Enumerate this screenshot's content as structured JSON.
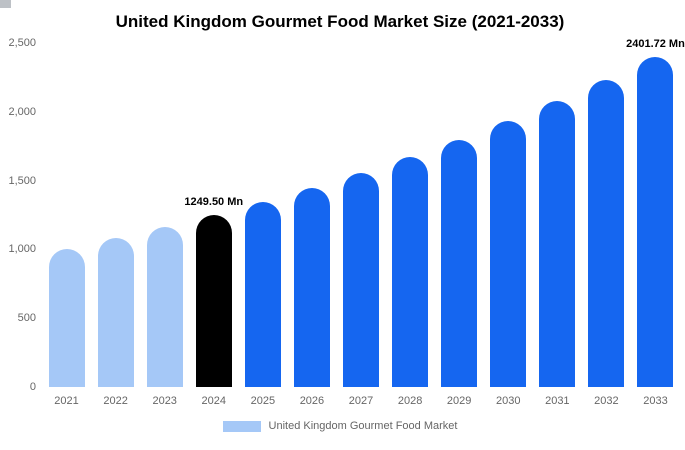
{
  "title": "United Kingdom Gourmet Food Market Size (2021-2033)",
  "legend": {
    "label": "United Kingdom Gourmet Food Market",
    "swatch_color": "#a5c8f7"
  },
  "colors": {
    "light_blue": "#a5c8f7",
    "bright_blue": "#1566f0",
    "black": "#000000",
    "axis_text": "#666666"
  },
  "chart_data": {
    "type": "bar",
    "title": "United Kingdom Gourmet Food Market Size (2021-2033)",
    "categories": [
      "2021",
      "2022",
      "2023",
      "2024",
      "2025",
      "2026",
      "2027",
      "2028",
      "2029",
      "2030",
      "2031",
      "2032",
      "2033"
    ],
    "values": [
      1005.0,
      1081.0,
      1162.2,
      1249.5,
      1343.6,
      1444.8,
      1553.6,
      1670.6,
      1796.4,
      1931.7,
      2077.1,
      2233.5,
      2401.72
    ],
    "bar_colors": [
      "#a5c8f7",
      "#a5c8f7",
      "#a5c8f7",
      "#000000",
      "#1566f0",
      "#1566f0",
      "#1566f0",
      "#1566f0",
      "#1566f0",
      "#1566f0",
      "#1566f0",
      "#1566f0",
      "#1566f0"
    ],
    "annotations": [
      {
        "category": "2024",
        "text": "1249.50 Mn"
      },
      {
        "category": "2033",
        "text": "2401.72 Mn"
      }
    ],
    "xlabel": "",
    "ylabel": "",
    "ylim": [
      0,
      2500
    ],
    "yticks": [
      "2,500",
      "2,000",
      "1,500",
      "1,000",
      "500",
      "0"
    ],
    "grid": false,
    "legend_position": "bottom",
    "legend_entries": [
      "United Kingdom Gourmet Food Market"
    ]
  }
}
